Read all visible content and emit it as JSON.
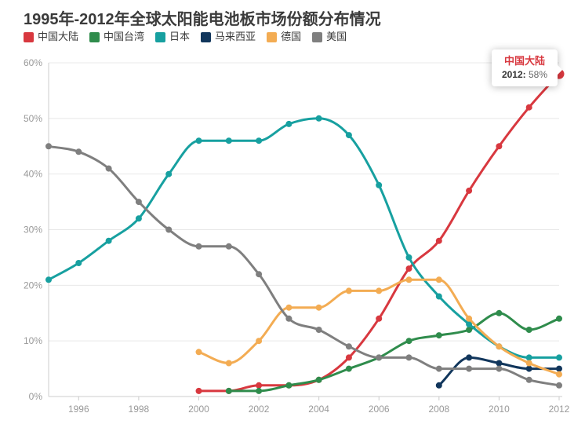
{
  "title": "1995年-2012年全球太阳能电池板市场份额分布情况",
  "colors": {
    "title": "#3b3b3b",
    "grid_line": "#e8e8e8",
    "axis_line": "#cccccc",
    "axis_label": "#999999",
    "legend_label": "#3a3a3a",
    "tooltip_label": "#333333",
    "tooltip_value": "#666666"
  },
  "tooltip": {
    "series_name": "中国大陆",
    "label": "2012:",
    "value": "58%"
  },
  "chart_data": {
    "type": "line",
    "title": "1995年-2012年全球太阳能电池板市场份额分布情况",
    "x": [
      1995,
      1996,
      1997,
      1998,
      1999,
      2000,
      2001,
      2002,
      2003,
      2004,
      2005,
      2006,
      2007,
      2008,
      2009,
      2010,
      2011,
      2012
    ],
    "x_tick_labels": [
      "1996",
      "1998",
      "2000",
      "2002",
      "2004",
      "2006",
      "2008",
      "2010",
      "2012"
    ],
    "x_tick_years": [
      1996,
      1998,
      2000,
      2002,
      2004,
      2006,
      2008,
      2010,
      2012
    ],
    "y_tick_labels": [
      "0%",
      "10%",
      "20%",
      "30%",
      "40%",
      "50%",
      "60%"
    ],
    "y_tick_values": [
      0,
      10,
      20,
      30,
      40,
      50,
      60
    ],
    "ylim": [
      0,
      60
    ],
    "xlabel": "",
    "ylabel": "",
    "grid": true,
    "legend_position": "top-left",
    "smooth": true,
    "series": [
      {
        "id": "china-mainland",
        "name": "中国大陆",
        "color": "#d8383f",
        "start_year": 2000,
        "values": [
          1,
          1,
          2,
          2,
          3,
          7,
          14,
          23,
          28,
          37,
          45,
          52,
          58
        ]
      },
      {
        "id": "taiwan",
        "name": "中国台湾",
        "color": "#2f8c4c",
        "start_year": 2001,
        "values": [
          1,
          1,
          2,
          3,
          5,
          7,
          10,
          11,
          12,
          15,
          12,
          14
        ]
      },
      {
        "id": "japan",
        "name": "日本",
        "color": "#17a0a0",
        "start_year": 1995,
        "values": [
          21,
          24,
          28,
          32,
          40,
          46,
          46,
          46,
          49,
          50,
          47,
          38,
          25,
          18,
          13,
          9,
          7,
          7
        ]
      },
      {
        "id": "malaysia",
        "name": "马来西亚",
        "color": "#11365c",
        "start_year": 2008,
        "values": [
          2,
          7,
          6,
          5,
          5
        ]
      },
      {
        "id": "germany",
        "name": "德国",
        "color": "#f3ac53",
        "start_year": 2000,
        "values": [
          8,
          6,
          10,
          16,
          16,
          19,
          19,
          21,
          21,
          14,
          9,
          6,
          4
        ]
      },
      {
        "id": "usa",
        "name": "美国",
        "color": "#7f7f7f",
        "start_year": 1995,
        "values": [
          45,
          44,
          41,
          35,
          30,
          27,
          27,
          22,
          14,
          12,
          9,
          7,
          7,
          5,
          5,
          5,
          3,
          2
        ]
      }
    ],
    "highlight": {
      "series": "中国大陆",
      "series_id": "china-mainland",
      "year": 2012,
      "value": 58
    }
  }
}
